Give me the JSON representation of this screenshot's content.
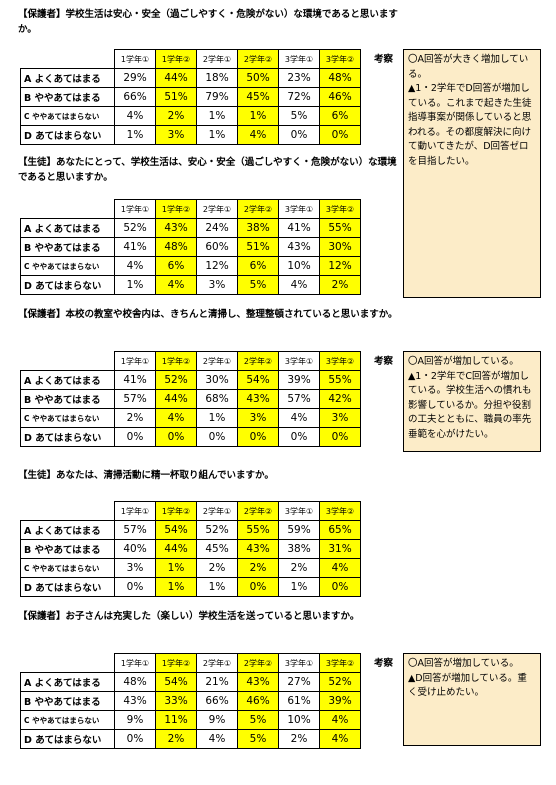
{
  "headers": [
    "1学年①",
    "1学年②",
    "2学年①",
    "2学年②",
    "3学年①",
    "3学年②"
  ],
  "kosatsu_label": "考察",
  "sections": [
    {
      "tag": "【保護者】",
      "question": "学校生活は安心・安全（過ごしやすく・危険がない）な環境であると思いますか。",
      "rows": [
        {
          "label": "A よくあてはまる",
          "values": [
            "29%",
            "44%",
            "18%",
            "50%",
            "23%",
            "48%"
          ]
        },
        {
          "label": "B ややあてはまる",
          "values": [
            "66%",
            "51%",
            "79%",
            "45%",
            "72%",
            "46%"
          ]
        },
        {
          "label": "C ややあてはまらない",
          "values": [
            "4%",
            "2%",
            "1%",
            "1%",
            "5%",
            "6%"
          ]
        },
        {
          "label": "D あてはまらない",
          "values": [
            "1%",
            "3%",
            "1%",
            "4%",
            "0%",
            "0%"
          ]
        }
      ]
    },
    {
      "tag": "【生徒】",
      "question": "あなたにとって、学校生活は、安心・安全（過ごしやすく・危険がない）な環境であると思いますか。",
      "rows": [
        {
          "label": "A よくあてはまる",
          "values": [
            "52%",
            "43%",
            "24%",
            "38%",
            "41%",
            "55%"
          ]
        },
        {
          "label": "B ややあてはまる",
          "values": [
            "41%",
            "48%",
            "60%",
            "51%",
            "43%",
            "30%"
          ]
        },
        {
          "label": "C ややあてはまらない",
          "values": [
            "4%",
            "6%",
            "12%",
            "6%",
            "10%",
            "12%"
          ]
        },
        {
          "label": "D あてはまらない",
          "values": [
            "1%",
            "4%",
            "3%",
            "5%",
            "4%",
            "2%"
          ]
        }
      ]
    },
    {
      "tag": "【保護者】",
      "question": "本校の教室や校舎内は、きちんと清掃し、整理整頓されていると思いますか。",
      "rows": [
        {
          "label": "A よくあてはまる",
          "values": [
            "41%",
            "52%",
            "30%",
            "54%",
            "39%",
            "55%"
          ]
        },
        {
          "label": "B ややあてはまる",
          "values": [
            "57%",
            "44%",
            "68%",
            "43%",
            "57%",
            "42%"
          ]
        },
        {
          "label": "C ややあてはまらない",
          "values": [
            "2%",
            "4%",
            "1%",
            "3%",
            "4%",
            "3%"
          ]
        },
        {
          "label": "D あてはまらない",
          "values": [
            "0%",
            "0%",
            "0%",
            "0%",
            "0%",
            "0%"
          ]
        }
      ]
    },
    {
      "tag": "【生徒】",
      "question": "あなたは、清掃活動に精一杯取り組んでいますか。",
      "rows": [
        {
          "label": "A よくあてはまる",
          "values": [
            "57%",
            "54%",
            "52%",
            "55%",
            "59%",
            "65%"
          ]
        },
        {
          "label": "B ややあてはまる",
          "values": [
            "40%",
            "44%",
            "45%",
            "43%",
            "38%",
            "31%"
          ]
        },
        {
          "label": "C ややあてはまらない",
          "values": [
            "3%",
            "1%",
            "2%",
            "2%",
            "2%",
            "4%"
          ]
        },
        {
          "label": "D あてはまらない",
          "values": [
            "0%",
            "1%",
            "1%",
            "0%",
            "1%",
            "0%"
          ]
        }
      ]
    },
    {
      "tag": "【保護者】",
      "question": "お子さんは充実した（楽しい）学校生活を送っていると思いますか。",
      "rows": [
        {
          "label": "A よくあてはまる",
          "values": [
            "48%",
            "54%",
            "21%",
            "43%",
            "27%",
            "52%"
          ]
        },
        {
          "label": "B ややあてはまる",
          "values": [
            "43%",
            "33%",
            "66%",
            "46%",
            "61%",
            "39%"
          ]
        },
        {
          "label": "C ややあてはまらない",
          "values": [
            "9%",
            "11%",
            "9%",
            "5%",
            "10%",
            "4%"
          ]
        },
        {
          "label": "D あてはまらない",
          "values": [
            "0%",
            "2%",
            "4%",
            "5%",
            "2%",
            "4%"
          ]
        }
      ]
    }
  ],
  "notes": [
    "〇A回答が大きく増加している。\n▲1・2学年でD回答が増加している。これまで起きた生徒指導事案が関係していると思われる。その都度解決に向けて動いてきたが、D回答ゼロを目指したい。",
    "〇A回答が増加している。\n▲1・2学年でC回答が増加している。学校生活への慣れも影響しているか。分担や役割の工夫とともに、職員の率先垂範を心がけたい。",
    "〇A回答が増加している。\n▲D回答が増加している。重く受け止めたい。"
  ]
}
